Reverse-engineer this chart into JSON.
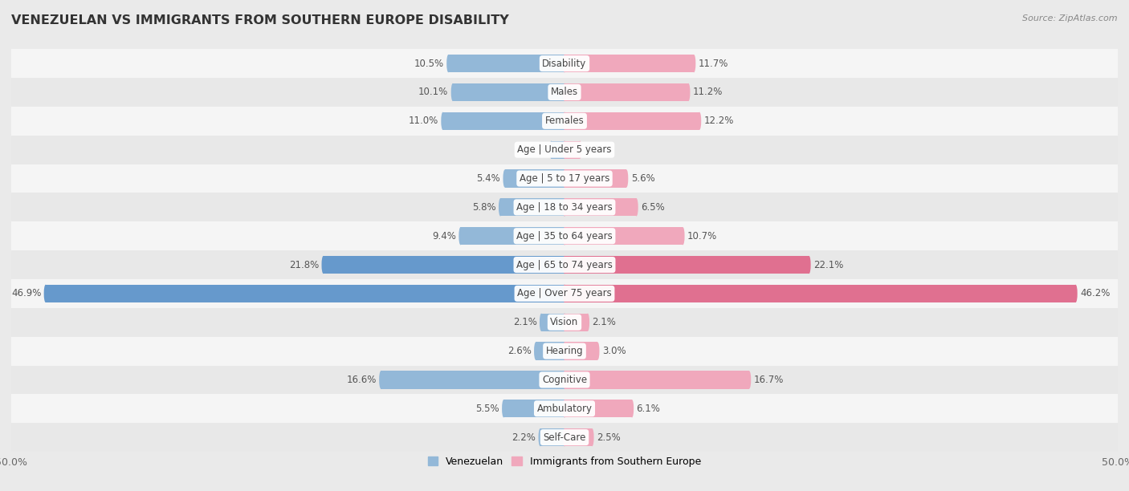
{
  "title": "VENEZUELAN VS IMMIGRANTS FROM SOUTHERN EUROPE DISABILITY",
  "source": "Source: ZipAtlas.com",
  "categories": [
    "Disability",
    "Males",
    "Females",
    "Age | Under 5 years",
    "Age | 5 to 17 years",
    "Age | 18 to 34 years",
    "Age | 35 to 64 years",
    "Age | 65 to 74 years",
    "Age | Over 75 years",
    "Vision",
    "Hearing",
    "Cognitive",
    "Ambulatory",
    "Self-Care"
  ],
  "venezuelan": [
    10.5,
    10.1,
    11.0,
    1.2,
    5.4,
    5.8,
    9.4,
    21.8,
    46.9,
    2.1,
    2.6,
    16.6,
    5.5,
    2.2
  ],
  "southern_europe": [
    11.7,
    11.2,
    12.2,
    1.4,
    5.6,
    6.5,
    10.7,
    22.1,
    46.2,
    2.1,
    3.0,
    16.7,
    6.1,
    2.5
  ],
  "venezuelan_color_normal": "#93B8D8",
  "venezuelan_color_large": "#6699CC",
  "southern_europe_color_normal": "#F0A8BC",
  "southern_europe_color_large": "#E07090",
  "large_threshold": 20,
  "background_color": "#EAEAEA",
  "row_bg_even": "#F5F5F5",
  "row_bg_odd": "#E8E8E8",
  "axis_max": 50.0,
  "bar_height": 0.62,
  "legend_label_left": "Venezuelan",
  "legend_label_right": "Immigrants from Southern Europe",
  "title_fontsize": 11.5,
  "value_fontsize": 8.5,
  "category_fontsize": 8.5,
  "source_fontsize": 8
}
